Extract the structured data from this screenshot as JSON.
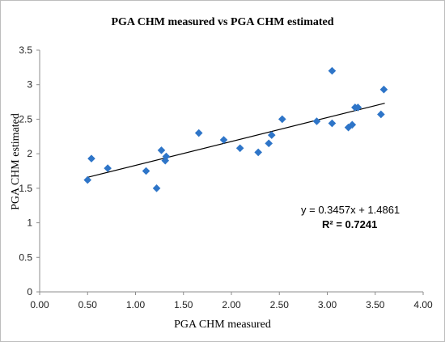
{
  "chart_data": {
    "type": "scatter",
    "title": "PGA CHM measured vs PGA CHM estimated",
    "xlabel": "PGA CHM measured",
    "ylabel": "PGA CHM estimated",
    "xlim": [
      0,
      4
    ],
    "ylim": [
      0,
      3.5
    ],
    "x_ticks": [
      "0.00",
      "0.50",
      "1.00",
      "1.50",
      "2.00",
      "2.50",
      "3.00",
      "3.50",
      "4.00"
    ],
    "y_ticks": [
      "0",
      "0.5",
      "1",
      "1.5",
      "2",
      "2.5",
      "3",
      "3.5"
    ],
    "marker_color": "#2e75c8",
    "grid": false,
    "points": [
      {
        "x": 0.5,
        "y": 1.62
      },
      {
        "x": 0.54,
        "y": 1.93
      },
      {
        "x": 0.71,
        "y": 1.79
      },
      {
        "x": 1.11,
        "y": 1.75
      },
      {
        "x": 1.22,
        "y": 1.5
      },
      {
        "x": 1.27,
        "y": 2.05
      },
      {
        "x": 1.31,
        "y": 1.9
      },
      {
        "x": 1.32,
        "y": 1.96
      },
      {
        "x": 1.66,
        "y": 2.3
      },
      {
        "x": 1.92,
        "y": 2.2
      },
      {
        "x": 2.09,
        "y": 2.08
      },
      {
        "x": 2.28,
        "y": 2.02
      },
      {
        "x": 2.39,
        "y": 2.15
      },
      {
        "x": 2.42,
        "y": 2.27
      },
      {
        "x": 2.53,
        "y": 2.5
      },
      {
        "x": 2.89,
        "y": 2.47
      },
      {
        "x": 3.05,
        "y": 2.44
      },
      {
        "x": 3.05,
        "y": 3.2
      },
      {
        "x": 3.22,
        "y": 2.38
      },
      {
        "x": 3.26,
        "y": 2.42
      },
      {
        "x": 3.29,
        "y": 2.67
      },
      {
        "x": 3.32,
        "y": 2.67
      },
      {
        "x": 3.56,
        "y": 2.57
      },
      {
        "x": 3.59,
        "y": 2.93
      }
    ],
    "trendline": {
      "slope": 0.3457,
      "intercept": 1.4861,
      "x_range": [
        0.5,
        3.6
      ],
      "equation_label": "y = 0.3457x + 1.4861",
      "r2_label": "R² = 0.7241"
    }
  }
}
